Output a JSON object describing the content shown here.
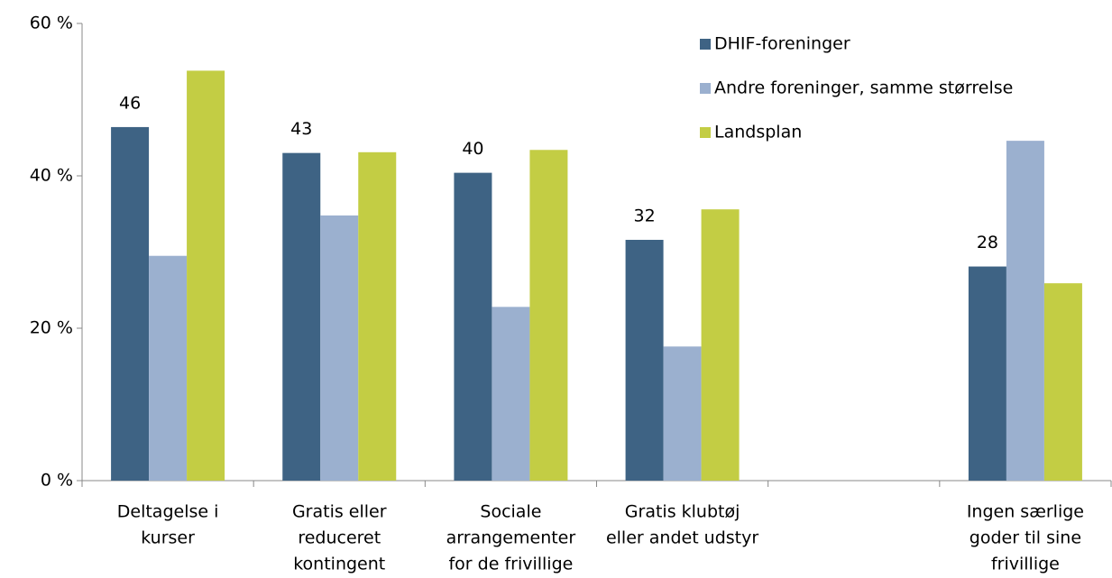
{
  "chart_data": {
    "type": "bar",
    "categories": [
      [
        "Deltagelse i",
        "kurser"
      ],
      [
        "Gratis eller",
        "reduceret",
        "kontingent"
      ],
      [
        "Sociale",
        "arrangementer",
        "for de frivillige"
      ],
      [
        "Gratis klubtøj",
        "eller andet udstyr"
      ],
      null,
      [
        "Ingen særlige",
        "goder til sine",
        "frivillige"
      ]
    ],
    "series": [
      {
        "name": "DHIF-foreninger",
        "color": "#3e6384",
        "values": [
          46.4,
          43.0,
          40.4,
          31.6,
          null,
          28.1
        ],
        "value_labels": [
          "46",
          "43",
          "40",
          "32",
          null,
          "28"
        ]
      },
      {
        "name": "Andre foreninger, samme størrelse",
        "color": "#9bb0cf",
        "values": [
          29.5,
          34.8,
          22.8,
          17.6,
          null,
          44.6
        ]
      },
      {
        "name": "Landsplan",
        "color": "#c3cd44",
        "values": [
          53.8,
          43.1,
          43.4,
          35.6,
          null,
          25.9
        ]
      }
    ],
    "ylim": [
      0,
      60
    ],
    "yticks": [
      {
        "value": 0,
        "label": "0 %"
      },
      {
        "value": 20,
        "label": "20 %"
      },
      {
        "value": 40,
        "label": "40 %"
      },
      {
        "value": 60,
        "label": "60 %"
      }
    ],
    "legend": "top-right"
  }
}
